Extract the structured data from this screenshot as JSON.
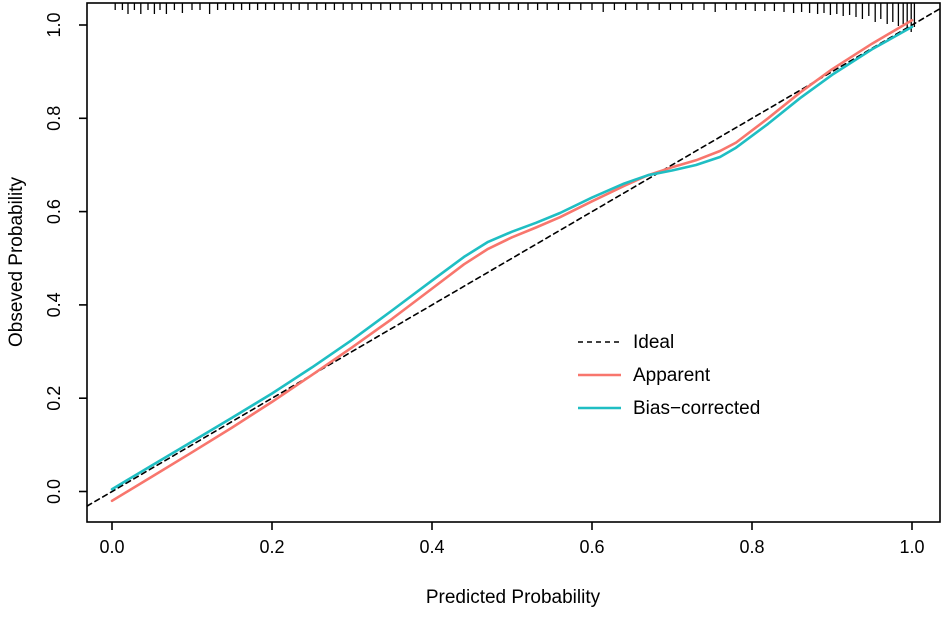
{
  "chart_data": {
    "type": "line",
    "title": "",
    "xlabel": "Predicted Probability",
    "ylabel": "Obseved Probability",
    "xlim": [
      -0.04,
      1.04
    ],
    "ylim": [
      -0.04,
      1.04
    ],
    "grid": false,
    "x_ticks": [
      0,
      0.2,
      0.4,
      0.6,
      0.8,
      1
    ],
    "x_tick_labels": [
      "0.0",
      "0.2",
      "0.4",
      "0.6",
      "0.8",
      "1.0"
    ],
    "y_ticks": [
      0,
      0.2,
      0.4,
      0.6,
      0.8,
      1
    ],
    "y_tick_labels": [
      "0.0",
      "0.2",
      "0.4",
      "0.6",
      "0.8",
      "1.0"
    ],
    "axis_color": "#000000",
    "legend_position": "center-right",
    "series": [
      {
        "name": "Ideal",
        "color": "#000000",
        "style": "dashed",
        "points": [
          [
            -0.031,
            -0.031
          ],
          [
            1.035,
            1.035
          ]
        ]
      },
      {
        "name": "Apparent",
        "color": "#F8766D",
        "style": "solid",
        "points": [
          [
            0.0,
            -0.02
          ],
          [
            0.05,
            0.032
          ],
          [
            0.1,
            0.084
          ],
          [
            0.15,
            0.137
          ],
          [
            0.2,
            0.192
          ],
          [
            0.25,
            0.25
          ],
          [
            0.3,
            0.309
          ],
          [
            0.35,
            0.37
          ],
          [
            0.4,
            0.435
          ],
          [
            0.44,
            0.487
          ],
          [
            0.47,
            0.52
          ],
          [
            0.5,
            0.545
          ],
          [
            0.53,
            0.566
          ],
          [
            0.56,
            0.588
          ],
          [
            0.6,
            0.622
          ],
          [
            0.64,
            0.655
          ],
          [
            0.67,
            0.678
          ],
          [
            0.7,
            0.695
          ],
          [
            0.73,
            0.71
          ],
          [
            0.76,
            0.73
          ],
          [
            0.78,
            0.748
          ],
          [
            0.82,
            0.8
          ],
          [
            0.86,
            0.855
          ],
          [
            0.9,
            0.905
          ],
          [
            0.95,
            0.96
          ],
          [
            1.0,
            1.01
          ]
        ]
      },
      {
        "name": "Bias−corrected",
        "color": "#1FBEC3",
        "style": "solid",
        "points": [
          [
            0.0,
            0.005
          ],
          [
            0.05,
            0.056
          ],
          [
            0.1,
            0.107
          ],
          [
            0.15,
            0.158
          ],
          [
            0.2,
            0.21
          ],
          [
            0.25,
            0.266
          ],
          [
            0.3,
            0.325
          ],
          [
            0.35,
            0.388
          ],
          [
            0.4,
            0.452
          ],
          [
            0.44,
            0.503
          ],
          [
            0.47,
            0.535
          ],
          [
            0.5,
            0.557
          ],
          [
            0.53,
            0.576
          ],
          [
            0.56,
            0.597
          ],
          [
            0.6,
            0.63
          ],
          [
            0.64,
            0.66
          ],
          [
            0.67,
            0.678
          ],
          [
            0.7,
            0.688
          ],
          [
            0.73,
            0.7
          ],
          [
            0.76,
            0.717
          ],
          [
            0.78,
            0.737
          ],
          [
            0.82,
            0.788
          ],
          [
            0.86,
            0.843
          ],
          [
            0.9,
            0.893
          ],
          [
            0.95,
            0.948
          ],
          [
            1.0,
            0.996
          ]
        ]
      }
    ],
    "rug": {
      "side": "top",
      "color": "#000000",
      "ticks": [
        [
          0.004,
          7
        ],
        [
          0.013,
          7
        ],
        [
          0.02,
          11
        ],
        [
          0.028,
          7
        ],
        [
          0.036,
          11
        ],
        [
          0.045,
          7
        ],
        [
          0.053,
          11
        ],
        [
          0.06,
          7
        ],
        [
          0.068,
          11
        ],
        [
          0.078,
          7
        ],
        [
          0.088,
          10
        ],
        [
          0.1,
          7
        ],
        [
          0.11,
          7
        ],
        [
          0.122,
          11
        ],
        [
          0.132,
          7
        ],
        [
          0.142,
          7
        ],
        [
          0.152,
          7
        ],
        [
          0.162,
          7
        ],
        [
          0.172,
          7
        ],
        [
          0.182,
          7
        ],
        [
          0.192,
          7
        ],
        [
          0.203,
          7
        ],
        [
          0.214,
          7
        ],
        [
          0.224,
          7
        ],
        [
          0.234,
          7
        ],
        [
          0.245,
          7
        ],
        [
          0.256,
          7
        ],
        [
          0.267,
          7
        ],
        [
          0.278,
          7
        ],
        [
          0.289,
          7
        ],
        [
          0.3,
          7
        ],
        [
          0.312,
          7
        ],
        [
          0.324,
          7
        ],
        [
          0.336,
          7
        ],
        [
          0.348,
          7
        ],
        [
          0.36,
          7
        ],
        [
          0.374,
          7
        ],
        [
          0.388,
          7
        ],
        [
          0.4,
          7
        ],
        [
          0.412,
          7
        ],
        [
          0.424,
          7
        ],
        [
          0.436,
          7
        ],
        [
          0.448,
          7
        ],
        [
          0.46,
          7
        ],
        [
          0.472,
          7
        ],
        [
          0.484,
          7
        ],
        [
          0.496,
          7
        ],
        [
          0.508,
          7
        ],
        [
          0.52,
          7
        ],
        [
          0.532,
          7
        ],
        [
          0.544,
          7
        ],
        [
          0.558,
          7
        ],
        [
          0.572,
          7
        ],
        [
          0.586,
          7
        ],
        [
          0.6,
          7
        ],
        [
          0.614,
          9
        ],
        [
          0.628,
          7
        ],
        [
          0.642,
          7
        ],
        [
          0.656,
          7
        ],
        [
          0.67,
          7
        ],
        [
          0.684,
          7
        ],
        [
          0.698,
          7
        ],
        [
          0.712,
          7
        ],
        [
          0.726,
          7
        ],
        [
          0.74,
          7
        ],
        [
          0.754,
          9
        ],
        [
          0.768,
          7
        ],
        [
          0.78,
          7
        ],
        [
          0.792,
          7
        ],
        [
          0.804,
          8
        ],
        [
          0.816,
          8
        ],
        [
          0.828,
          8
        ],
        [
          0.84,
          9
        ],
        [
          0.852,
          10
        ],
        [
          0.862,
          9
        ],
        [
          0.872,
          10
        ],
        [
          0.882,
          11
        ],
        [
          0.89,
          10
        ],
        [
          0.898,
          12
        ],
        [
          0.906,
          11
        ],
        [
          0.914,
          13
        ],
        [
          0.922,
          12
        ],
        [
          0.93,
          14
        ],
        [
          0.938,
          16
        ],
        [
          0.946,
          13
        ],
        [
          0.954,
          19
        ],
        [
          0.961,
          16
        ],
        [
          0.969,
          21
        ],
        [
          0.976,
          19
        ],
        [
          0.983,
          23
        ],
        [
          0.989,
          21
        ],
        [
          0.994,
          27
        ],
        [
          0.999,
          29
        ],
        [
          1.003,
          24
        ]
      ]
    }
  }
}
